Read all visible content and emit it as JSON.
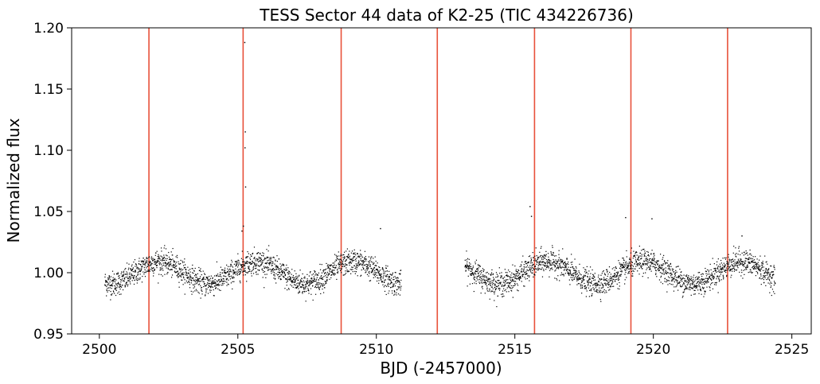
{
  "chart_data": {
    "type": "scatter",
    "title": "TESS Sector 44 data of K2-25 (TIC 434226736)",
    "xlabel": "BJD (-2457000)",
    "ylabel": "Normalized flux",
    "xlim": [
      2499.0,
      2525.7
    ],
    "ylim": [
      0.95,
      1.2
    ],
    "x_ticks": [
      2500,
      2505,
      2510,
      2515,
      2520,
      2525
    ],
    "y_ticks": [
      0.95,
      1.0,
      1.05,
      1.1,
      1.15,
      1.2
    ],
    "y_tick_labels": [
      "0.95",
      "1.00",
      "1.05",
      "1.10",
      "1.15",
      "1.20"
    ],
    "grid": false,
    "series": [
      {
        "marker_color": "#000000",
        "segments": [
          {
            "x_start": 2500.2,
            "x_end": 2510.9
          },
          {
            "x_start": 2513.2,
            "x_end": 2524.4
          }
        ],
        "baseline": 1.0,
        "modulation_amplitude": 0.009,
        "modulation_period_days": 3.5,
        "scatter": 0.005,
        "flare_points": [
          {
            "x": 2505.25,
            "y": 1.188
          },
          {
            "x": 2505.27,
            "y": 1.115
          },
          {
            "x": 2505.26,
            "y": 1.102
          },
          {
            "x": 2505.28,
            "y": 1.07
          },
          {
            "x": 2505.2,
            "y": 1.038
          },
          {
            "x": 2505.15,
            "y": 1.034
          },
          {
            "x": 2515.55,
            "y": 1.054
          },
          {
            "x": 2515.6,
            "y": 1.046
          },
          {
            "x": 2519.0,
            "y": 1.045
          },
          {
            "x": 2519.95,
            "y": 1.044
          },
          {
            "x": 2523.2,
            "y": 1.03
          },
          {
            "x": 2510.15,
            "y": 1.036
          }
        ]
      }
    ],
    "vertical_lines": {
      "color": "#e8513a",
      "x": [
        2501.79,
        2505.19,
        2508.73,
        2512.2,
        2515.71,
        2519.19,
        2522.68
      ]
    }
  }
}
